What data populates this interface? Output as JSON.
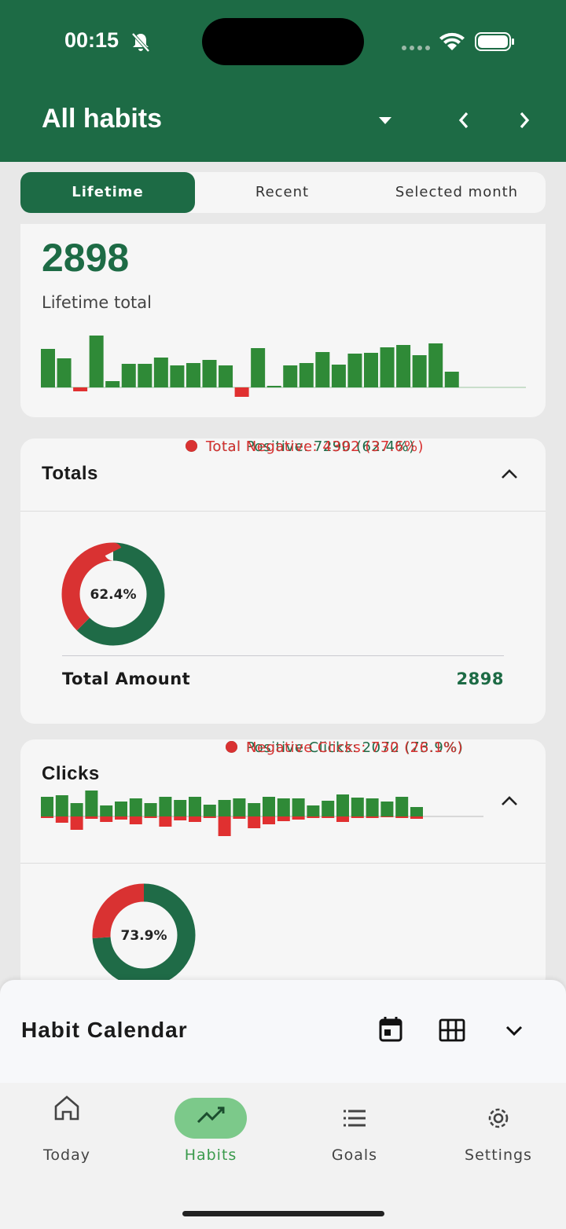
{
  "status_bar": {
    "time": "00:15"
  },
  "header": {
    "title": "All habits"
  },
  "tabs": {
    "items": [
      "Lifetime",
      "Recent",
      "Selected month"
    ],
    "active": 0
  },
  "summary": {
    "value": 2898,
    "caption": "Lifetime total",
    "positive_color": "#2f8a37",
    "negative_color": "#e03030",
    "bars": [
      49,
      37,
      -5,
      66,
      8,
      30,
      30,
      38,
      28,
      31,
      35,
      28,
      -12,
      50,
      2,
      28,
      31,
      45,
      29,
      43,
      44,
      51,
      54,
      41,
      56,
      20,
      0,
      0,
      0,
      0
    ]
  },
  "totals": {
    "title": "Totals",
    "donut": {
      "center": "62.4%",
      "segments": [
        {
          "label": "Total Positive: 7290 (62.4%)",
          "value": 7290,
          "color": "#1f6b47"
        },
        {
          "label": "Total Negative: 4392 (37.6%)",
          "value": 4392,
          "color": "#d93232"
        }
      ]
    },
    "footer_label": "Total Amount",
    "footer_value": 2898
  },
  "clicks": {
    "title": "Clicks",
    "positive_color": "#2f8a37",
    "negative_color": "#e03030",
    "positive": [
      25,
      27,
      17,
      33,
      14,
      19,
      23,
      17,
      25,
      21,
      25,
      15,
      21,
      23,
      17,
      25,
      23,
      23,
      14,
      20,
      28,
      24,
      23,
      19,
      25,
      12
    ],
    "negative": [
      2,
      8,
      17,
      3,
      7,
      4,
      10,
      2,
      13,
      5,
      7,
      2,
      25,
      3,
      15,
      10,
      6,
      4,
      2,
      2,
      7,
      2,
      2,
      1,
      2,
      3
    ],
    "donut": {
      "center": "73.9%",
      "segments": [
        {
          "label": "Positive Clicks: 2072 (73.9%)",
          "value": 2072,
          "color": "#1f6b47"
        },
        {
          "label": "Negative Clicks: 730 (26.1%)",
          "value": 730,
          "color": "#d93232"
        }
      ]
    }
  },
  "calendar": {
    "title": "Habit Calendar"
  },
  "nav": {
    "items": [
      "Today",
      "Habits",
      "Goals",
      "Settings"
    ],
    "active": 1
  }
}
